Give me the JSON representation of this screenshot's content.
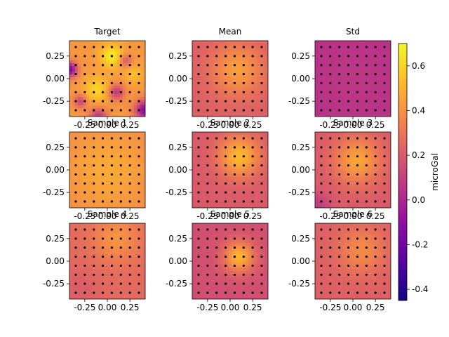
{
  "figure": {
    "colorbar_label": "microGal"
  },
  "chart_data": [
    {
      "type": "heatmap",
      "title": "Target",
      "xticks": [
        "-0.25",
        "0.00",
        "0.25"
      ],
      "yticks": [
        "0.25",
        "0.00",
        "-0.25"
      ],
      "xlim": [
        -0.42,
        0.42
      ],
      "ylim": [
        -0.42,
        0.42
      ],
      "field": "target"
    },
    {
      "type": "heatmap",
      "title": "Mean",
      "xticks": [
        "-0.25",
        "0.00",
        "0.25"
      ],
      "yticks": [
        "0.25",
        "0.00",
        "-0.25"
      ],
      "xlim": [
        -0.42,
        0.42
      ],
      "ylim": [
        -0.42,
        0.42
      ],
      "field": "mean"
    },
    {
      "type": "heatmap",
      "title": "Std",
      "xticks": [
        "-0.25",
        "0.00",
        "0.25"
      ],
      "yticks": [
        "0.25",
        "0.00",
        "-0.25"
      ],
      "xlim": [
        -0.42,
        0.42
      ],
      "ylim": [
        -0.42,
        0.42
      ],
      "field": "std"
    },
    {
      "type": "heatmap",
      "title": "Sample 1",
      "xticks": [
        "-0.25",
        "0.00",
        "0.25"
      ],
      "yticks": [
        "0.25",
        "0.00",
        "-0.25"
      ],
      "xlim": [
        -0.42,
        0.42
      ],
      "ylim": [
        -0.42,
        0.42
      ],
      "field": "s1"
    },
    {
      "type": "heatmap",
      "title": "Sample 2",
      "xticks": [
        "-0.25",
        "0.00",
        "0.25"
      ],
      "yticks": [
        "0.25",
        "0.00",
        "-0.25"
      ],
      "xlim": [
        -0.42,
        0.42
      ],
      "ylim": [
        -0.42,
        0.42
      ],
      "field": "s2"
    },
    {
      "type": "heatmap",
      "title": "Sample 3",
      "xticks": [
        "-0.25",
        "0.00",
        "0.25"
      ],
      "yticks": [
        "0.25",
        "0.00",
        "-0.25"
      ],
      "xlim": [
        -0.42,
        0.42
      ],
      "ylim": [
        -0.42,
        0.42
      ],
      "field": "s3"
    },
    {
      "type": "heatmap",
      "title": "Sample 4",
      "xticks": [
        "-0.25",
        "0.00",
        "0.25"
      ],
      "yticks": [
        "0.25",
        "0.00",
        "-0.25"
      ],
      "xlim": [
        -0.42,
        0.42
      ],
      "ylim": [
        -0.42,
        0.42
      ],
      "field": "s4"
    },
    {
      "type": "heatmap",
      "title": "Sample 5",
      "xticks": [
        "-0.25",
        "0.00",
        "0.25"
      ],
      "yticks": [
        "0.25",
        "0.00",
        "-0.25"
      ],
      "xlim": [
        -0.42,
        0.42
      ],
      "ylim": [
        -0.42,
        0.42
      ],
      "field": "s5"
    },
    {
      "type": "heatmap",
      "title": "Sample 6",
      "xticks": [
        "-0.25",
        "0.00",
        "0.25"
      ],
      "yticks": [
        "0.25",
        "0.00",
        "-0.25"
      ],
      "xlim": [
        -0.42,
        0.42
      ],
      "ylim": [
        -0.42,
        0.42
      ],
      "field": "s6"
    }
  ],
  "colorbar": {
    "colormap": "plasma",
    "range": [
      -0.45,
      0.7
    ],
    "ticks": [
      -0.4,
      -0.2,
      0.0,
      0.2,
      0.4,
      0.6
    ],
    "tick_labels": [
      "-0.4",
      "-0.2",
      "0.0",
      "0.2",
      "0.4",
      "0.6"
    ]
  },
  "stations": {
    "x": [
      -0.35,
      -0.25,
      -0.15,
      -0.05,
      0.05,
      0.15,
      0.25,
      0.35
    ],
    "y": [
      -0.35,
      -0.25,
      -0.15,
      -0.05,
      0.05,
      0.15,
      0.25,
      0.35
    ],
    "color": "#000000"
  }
}
